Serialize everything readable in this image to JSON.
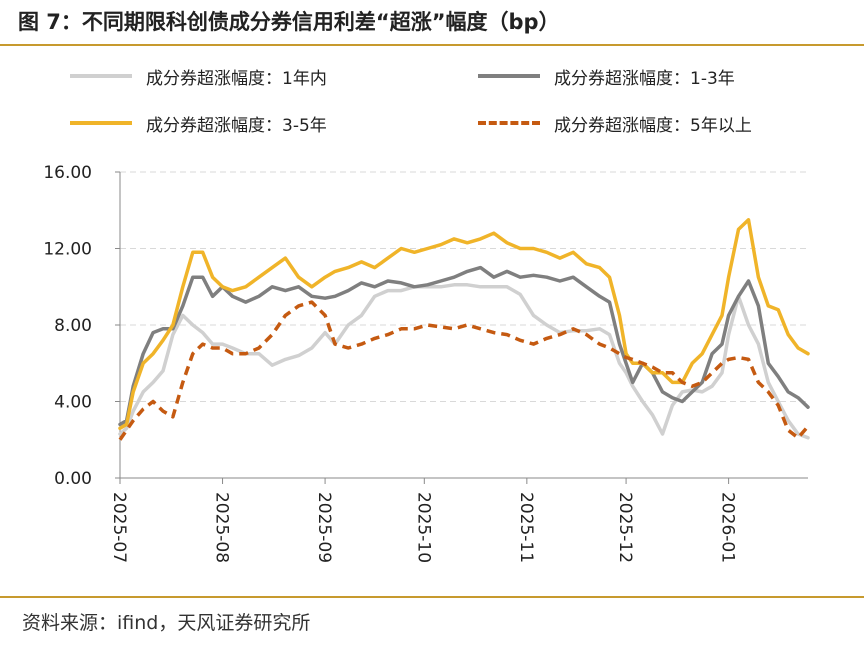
{
  "title": "图 7：不同期限科创债成分券信用利差“超涨”幅度（bp）",
  "source": "资料来源：ifind，天风证券研究所",
  "chart_data": {
    "type": "line",
    "x_tick_labels": [
      "2025-07",
      "2025-08",
      "2025-09",
      "2025-10",
      "2025-11",
      "2025-12",
      "2026-01"
    ],
    "y_tick_labels": [
      "16.00",
      "12.00",
      "8.00",
      "4.00",
      "0.00"
    ],
    "ylim": [
      0,
      16
    ],
    "xlim": [
      "2025-07-01",
      "2026-01-25"
    ],
    "grid": "horizontal-dashed",
    "legend_position": "top",
    "series": [
      {
        "name": "成分券超涨幅度：1年内",
        "color": "#d0d0d0",
        "style": "solid",
        "x": [
          "2025-07-01",
          "2025-07-03",
          "2025-07-05",
          "2025-07-08",
          "2025-07-11",
          "2025-07-14",
          "2025-07-17",
          "2025-07-20",
          "2025-07-23",
          "2025-07-26",
          "2025-07-29",
          "2025-08-01",
          "2025-08-04",
          "2025-08-08",
          "2025-08-12",
          "2025-08-16",
          "2025-08-20",
          "2025-08-24",
          "2025-08-28",
          "2025-09-01",
          "2025-09-04",
          "2025-09-08",
          "2025-09-12",
          "2025-09-16",
          "2025-09-20",
          "2025-09-24",
          "2025-09-28",
          "2025-10-02",
          "2025-10-06",
          "2025-10-10",
          "2025-10-14",
          "2025-10-18",
          "2025-10-22",
          "2025-10-26",
          "2025-10-30",
          "2025-11-03",
          "2025-11-07",
          "2025-11-11",
          "2025-11-15",
          "2025-11-19",
          "2025-11-23",
          "2025-11-26",
          "2025-11-29",
          "2025-12-01",
          "2025-12-03",
          "2025-12-06",
          "2025-12-09",
          "2025-12-12",
          "2025-12-15",
          "2025-12-18",
          "2025-12-21",
          "2025-12-24",
          "2025-12-27",
          "2025-12-30",
          "2026-01-01",
          "2026-01-04",
          "2026-01-07",
          "2026-01-10",
          "2026-01-13",
          "2026-01-16",
          "2026-01-19",
          "2026-01-22",
          "2026-01-25"
        ],
        "values": [
          2.3,
          2.6,
          3.5,
          4.5,
          5.0,
          5.6,
          7.5,
          8.5,
          8.0,
          7.6,
          7.0,
          7.0,
          6.8,
          6.5,
          6.5,
          5.9,
          6.2,
          6.4,
          6.8,
          7.6,
          7.0,
          8.0,
          8.5,
          9.5,
          9.8,
          9.8,
          10.0,
          10.0,
          10.0,
          10.1,
          10.1,
          10.0,
          10.0,
          10.0,
          9.6,
          8.5,
          8.0,
          7.6,
          7.7,
          7.7,
          7.8,
          7.5,
          6.0,
          5.5,
          4.8,
          4.0,
          3.3,
          2.3,
          3.8,
          4.5,
          4.6,
          4.5,
          4.8,
          5.5,
          7.5,
          9.5,
          8.0,
          7.0,
          5.0,
          4.0,
          3.0,
          2.3,
          2.1
        ]
      },
      {
        "name": "成分券超涨幅度：1-3年",
        "color": "#7f7f7f",
        "style": "solid",
        "x": [
          "2025-07-01",
          "2025-07-03",
          "2025-07-05",
          "2025-07-08",
          "2025-07-11",
          "2025-07-14",
          "2025-07-17",
          "2025-07-20",
          "2025-07-23",
          "2025-07-26",
          "2025-07-29",
          "2025-08-01",
          "2025-08-04",
          "2025-08-08",
          "2025-08-12",
          "2025-08-16",
          "2025-08-20",
          "2025-08-24",
          "2025-08-28",
          "2025-09-01",
          "2025-09-04",
          "2025-09-08",
          "2025-09-12",
          "2025-09-16",
          "2025-09-20",
          "2025-09-24",
          "2025-09-28",
          "2025-10-02",
          "2025-10-06",
          "2025-10-10",
          "2025-10-14",
          "2025-10-18",
          "2025-10-22",
          "2025-10-26",
          "2025-10-30",
          "2025-11-03",
          "2025-11-07",
          "2025-11-11",
          "2025-11-15",
          "2025-11-19",
          "2025-11-23",
          "2025-11-26",
          "2025-11-29",
          "2025-12-01",
          "2025-12-03",
          "2025-12-06",
          "2025-12-09",
          "2025-12-12",
          "2025-12-15",
          "2025-12-18",
          "2025-12-21",
          "2025-12-24",
          "2025-12-27",
          "2025-12-30",
          "2026-01-01",
          "2026-01-04",
          "2026-01-07",
          "2026-01-10",
          "2026-01-13",
          "2026-01-16",
          "2026-01-19",
          "2026-01-22",
          "2026-01-25"
        ],
        "values": [
          2.8,
          3.0,
          4.8,
          6.5,
          7.6,
          7.8,
          7.8,
          9.0,
          10.5,
          10.5,
          9.5,
          10.0,
          9.5,
          9.2,
          9.5,
          10.0,
          9.8,
          10.0,
          9.5,
          9.4,
          9.5,
          9.8,
          10.2,
          10.0,
          10.3,
          10.2,
          10.0,
          10.1,
          10.3,
          10.5,
          10.8,
          11.0,
          10.5,
          10.8,
          10.5,
          10.6,
          10.5,
          10.3,
          10.5,
          10.0,
          9.5,
          9.2,
          7.0,
          6.0,
          5.0,
          6.0,
          5.5,
          4.5,
          4.2,
          4.0,
          4.5,
          5.0,
          6.5,
          7.0,
          8.5,
          9.5,
          10.3,
          9.0,
          6.0,
          5.3,
          4.5,
          4.2,
          3.7
        ]
      },
      {
        "name": "成分券超涨幅度：3-5年",
        "color": "#f0b429",
        "style": "solid",
        "x": [
          "2025-07-01",
          "2025-07-03",
          "2025-07-05",
          "2025-07-08",
          "2025-07-11",
          "2025-07-14",
          "2025-07-17",
          "2025-07-20",
          "2025-07-23",
          "2025-07-26",
          "2025-07-29",
          "2025-08-01",
          "2025-08-04",
          "2025-08-08",
          "2025-08-12",
          "2025-08-16",
          "2025-08-20",
          "2025-08-24",
          "2025-08-28",
          "2025-09-01",
          "2025-09-04",
          "2025-09-08",
          "2025-09-12",
          "2025-09-16",
          "2025-09-20",
          "2025-09-24",
          "2025-09-28",
          "2025-10-02",
          "2025-10-06",
          "2025-10-10",
          "2025-10-14",
          "2025-10-18",
          "2025-10-22",
          "2025-10-26",
          "2025-10-30",
          "2025-11-03",
          "2025-11-07",
          "2025-11-11",
          "2025-11-15",
          "2025-11-19",
          "2025-11-23",
          "2025-11-26",
          "2025-11-29",
          "2025-12-01",
          "2025-12-03",
          "2025-12-06",
          "2025-12-09",
          "2025-12-12",
          "2025-12-15",
          "2025-12-18",
          "2025-12-21",
          "2025-12-24",
          "2025-12-27",
          "2025-12-30",
          "2026-01-01",
          "2026-01-04",
          "2026-01-07",
          "2026-01-10",
          "2026-01-13",
          "2026-01-16",
          "2026-01-19",
          "2026-01-22",
          "2026-01-25"
        ],
        "values": [
          2.6,
          2.8,
          4.5,
          6.0,
          6.5,
          7.2,
          8.0,
          10.0,
          11.8,
          11.8,
          10.5,
          10.0,
          9.8,
          10.0,
          10.5,
          11.0,
          11.5,
          10.5,
          10.0,
          10.5,
          10.8,
          11.0,
          11.3,
          11.0,
          11.5,
          12.0,
          11.8,
          12.0,
          12.2,
          12.5,
          12.3,
          12.5,
          12.8,
          12.3,
          12.0,
          12.0,
          11.8,
          11.5,
          11.8,
          11.2,
          11.0,
          10.5,
          8.5,
          6.5,
          6.0,
          6.0,
          5.5,
          5.5,
          5.0,
          5.0,
          6.0,
          6.5,
          7.5,
          8.5,
          10.5,
          13.0,
          13.5,
          10.5,
          9.0,
          8.8,
          7.5,
          6.8,
          6.5
        ]
      },
      {
        "name": "成分券超涨幅度：5年以上",
        "color": "#c55a11",
        "style": "dashed",
        "x": [
          "2025-07-01",
          "2025-07-03",
          "2025-07-05",
          "2025-07-08",
          "2025-07-11",
          "2025-07-14",
          "2025-07-17",
          "2025-07-20",
          "2025-07-23",
          "2025-07-26",
          "2025-07-29",
          "2025-08-01",
          "2025-08-04",
          "2025-08-08",
          "2025-08-12",
          "2025-08-16",
          "2025-08-20",
          "2025-08-24",
          "2025-08-28",
          "2025-09-01",
          "2025-09-04",
          "2025-09-08",
          "2025-09-12",
          "2025-09-16",
          "2025-09-20",
          "2025-09-24",
          "2025-09-28",
          "2025-10-02",
          "2025-10-06",
          "2025-10-10",
          "2025-10-14",
          "2025-10-18",
          "2025-10-22",
          "2025-10-26",
          "2025-10-30",
          "2025-11-03",
          "2025-11-07",
          "2025-11-11",
          "2025-11-15",
          "2025-11-19",
          "2025-11-23",
          "2025-11-26",
          "2025-11-29",
          "2025-12-01",
          "2025-12-03",
          "2025-12-06",
          "2025-12-09",
          "2025-12-12",
          "2025-12-15",
          "2025-12-18",
          "2025-12-21",
          "2025-12-24",
          "2025-12-27",
          "2025-12-30",
          "2026-01-01",
          "2026-01-04",
          "2026-01-07",
          "2026-01-10",
          "2026-01-13",
          "2026-01-16",
          "2026-01-19",
          "2026-01-22",
          "2026-01-25"
        ],
        "values": [
          2.0,
          2.5,
          3.0,
          3.6,
          4.0,
          3.5,
          3.2,
          5.0,
          6.5,
          7.0,
          6.8,
          6.8,
          6.5,
          6.5,
          6.8,
          7.5,
          8.5,
          9.0,
          9.2,
          8.5,
          7.0,
          6.8,
          7.0,
          7.3,
          7.5,
          7.8,
          7.8,
          8.0,
          7.9,
          7.8,
          8.0,
          7.8,
          7.6,
          7.5,
          7.2,
          7.0,
          7.3,
          7.5,
          7.8,
          7.5,
          7.0,
          6.8,
          6.5,
          6.3,
          6.2,
          6.0,
          5.8,
          5.5,
          5.5,
          5.0,
          4.8,
          5.0,
          5.5,
          6.0,
          6.2,
          6.3,
          6.2,
          5.0,
          4.5,
          3.8,
          2.5,
          2.1,
          2.7
        ]
      }
    ]
  }
}
